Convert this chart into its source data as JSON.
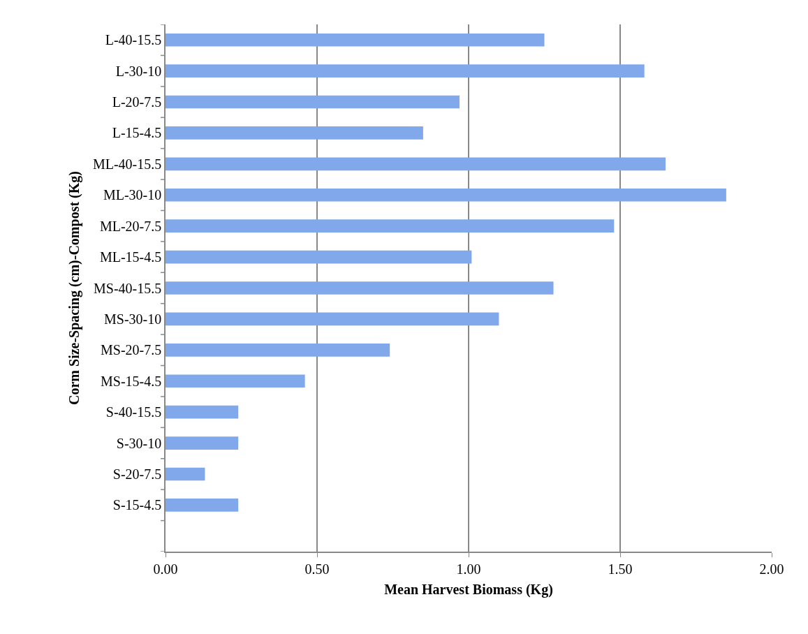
{
  "chart_data": {
    "type": "bar",
    "orientation": "horizontal",
    "xlabel": "Mean Harvest Biomass (Kg)",
    "ylabel": "Corm Size-Spacing (cm)-Compost (Kg)",
    "categories": [
      "L-40-15.5",
      "L-30-10",
      "L-20-7.5",
      "L-15-4.5",
      "ML-40-15.5",
      "ML-30-10",
      "ML-20-7.5",
      "ML-15-4.5",
      "MS-40-15.5",
      "MS-30-10",
      "MS-20-7.5",
      "MS-15-4.5",
      "S-40-15.5",
      "S-30-10",
      "S-20-7.5",
      "S-15-4.5",
      null
    ],
    "values": [
      1.25,
      1.58,
      0.97,
      0.85,
      1.65,
      1.85,
      1.48,
      1.01,
      1.28,
      1.1,
      0.74,
      0.46,
      0.24,
      0.24,
      0.13,
      0.24,
      null
    ],
    "color": "#80a8ea",
    "xlim": [
      0,
      2
    ],
    "xticks": [
      {
        "value": 0,
        "label": "0.00"
      },
      {
        "value": 0.5,
        "label": "0.50"
      },
      {
        "value": 1,
        "label": "1.00"
      },
      {
        "value": 1.5,
        "label": "1.50"
      },
      {
        "value": 2,
        "label": "2.00"
      }
    ],
    "grid": "x"
  }
}
